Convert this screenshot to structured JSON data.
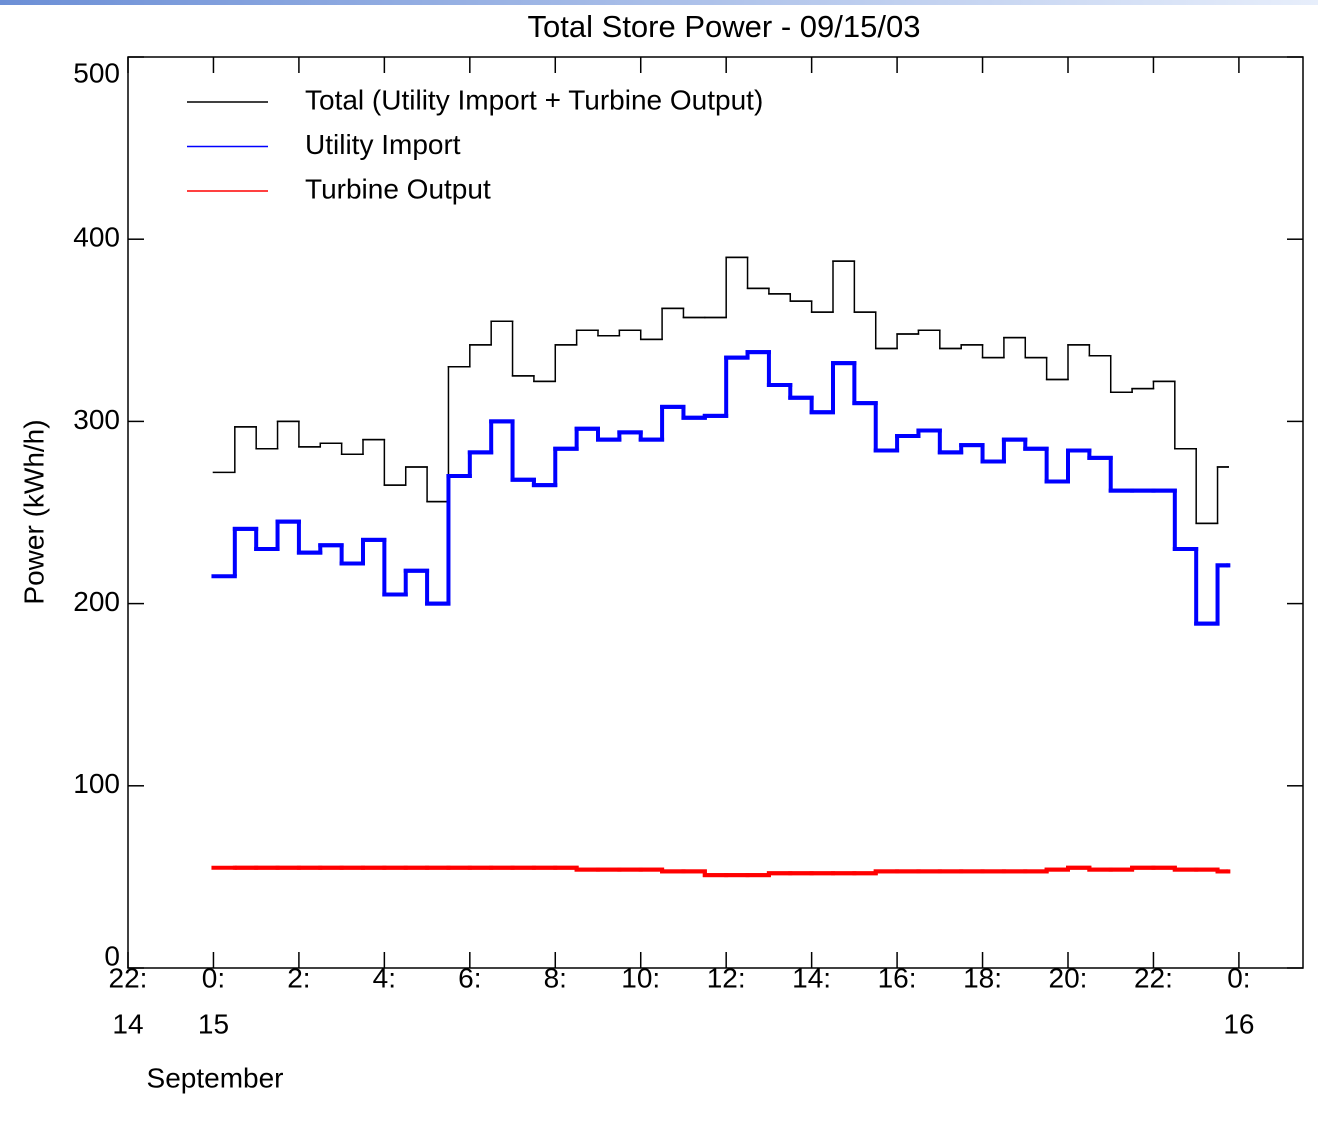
{
  "chart_data": {
    "type": "step",
    "title": "Total Store Power - 09/15/03",
    "y_label": "Power (kWh/h)",
    "x_label": "September",
    "xlim": [
      -2,
      25.5
    ],
    "ylim": [
      0,
      500
    ],
    "xticks": [
      {
        "value": -2,
        "label": "22:"
      },
      {
        "value": 0,
        "label": "0:"
      },
      {
        "value": 2,
        "label": "2:"
      },
      {
        "value": 4,
        "label": "4:"
      },
      {
        "value": 6,
        "label": "6:"
      },
      {
        "value": 8,
        "label": "8:"
      },
      {
        "value": 10,
        "label": "10:"
      },
      {
        "value": 12,
        "label": "12:"
      },
      {
        "value": 14,
        "label": "14:"
      },
      {
        "value": 16,
        "label": "16:"
      },
      {
        "value": 18,
        "label": "18:"
      },
      {
        "value": 20,
        "label": "20:"
      },
      {
        "value": 22,
        "label": "22:"
      },
      {
        "value": 24,
        "label": "0:"
      }
    ],
    "x_day_labels": [
      {
        "value": -2,
        "label": "14"
      },
      {
        "value": 0,
        "label": "15"
      },
      {
        "value": 24,
        "label": "16"
      }
    ],
    "yticks": [
      0,
      100,
      200,
      300,
      400,
      500
    ],
    "legend": "upper left",
    "x": [
      0,
      0.5,
      1,
      1.5,
      2,
      2.5,
      3,
      3.5,
      4,
      4.5,
      5,
      5.5,
      6,
      6.5,
      7,
      7.5,
      8,
      8.5,
      9,
      9.5,
      10,
      10.5,
      11,
      11.5,
      12,
      12.5,
      13,
      13.5,
      14,
      14.5,
      15,
      15.5,
      16,
      16.5,
      17,
      17.5,
      18,
      18.5,
      19,
      19.5,
      20,
      20.5,
      21,
      21.5,
      22,
      22.5,
      23,
      23.5,
      23.75
    ],
    "series": [
      {
        "name": "Total (Utility Import + Turbine Output)",
        "color": "#000000",
        "width": 1.5,
        "values": [
          272,
          297,
          285,
          300,
          286,
          288,
          282,
          290,
          265,
          275,
          256,
          330,
          342,
          355,
          325,
          322,
          342,
          350,
          347,
          350,
          345,
          362,
          357,
          357,
          390,
          373,
          370,
          366,
          360,
          388,
          360,
          340,
          348,
          350,
          340,
          342,
          335,
          346,
          335,
          323,
          342,
          336,
          316,
          318,
          322,
          285,
          244,
          275,
          275
        ]
      },
      {
        "name": "Utility Import",
        "color": "#0000ff",
        "width": 4,
        "values": [
          215,
          241,
          230,
          245,
          228,
          232,
          222,
          235,
          205,
          218,
          200,
          270,
          283,
          300,
          268,
          265,
          285,
          296,
          290,
          294,
          290,
          308,
          302,
          303,
          335,
          338,
          320,
          313,
          305,
          332,
          310,
          284,
          292,
          295,
          283,
          287,
          278,
          290,
          285,
          267,
          284,
          280,
          262,
          262,
          262,
          230,
          189,
          221,
          221
        ]
      },
      {
        "name": "Turbine Output",
        "color": "#ff0000",
        "width": 4,
        "values": [
          55,
          55,
          55,
          55,
          55,
          55,
          55,
          55,
          55,
          55,
          55,
          55,
          55,
          55,
          55,
          55,
          55,
          54,
          54,
          54,
          54,
          53,
          53,
          51,
          51,
          51,
          52,
          52,
          52,
          52,
          52,
          53,
          53,
          53,
          53,
          53,
          53,
          53,
          53,
          54,
          55,
          54,
          54,
          55,
          55,
          54,
          54,
          53,
          53
        ]
      }
    ]
  }
}
